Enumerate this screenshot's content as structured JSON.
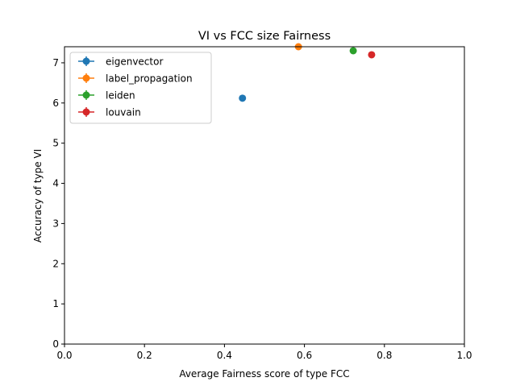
{
  "chart_data": {
    "type": "scatter",
    "title": "VI vs FCC size Fairness",
    "xlabel": "Average Fairness score of type FCC",
    "ylabel": "Accuracy of type VI",
    "xlim": [
      0,
      1
    ],
    "ylim": [
      0,
      7.4
    ],
    "xticks": [
      0.0,
      0.2,
      0.4,
      0.6,
      0.8,
      1.0
    ],
    "xtick_labels": [
      "0.0",
      "0.2",
      "0.4",
      "0.6",
      "0.8",
      "1.0"
    ],
    "yticks": [
      0,
      1,
      2,
      3,
      4,
      5,
      6,
      7
    ],
    "ytick_labels": [
      "0",
      "1",
      "2",
      "3",
      "4",
      "5",
      "6",
      "7"
    ],
    "grid": false,
    "legend_position": "top-left",
    "series": [
      {
        "name": "eigenvector",
        "color": "#1f77b4",
        "x": [
          0.445
        ],
        "y": [
          6.12
        ]
      },
      {
        "name": "label_propagation",
        "color": "#ff7f0e",
        "x": [
          0.585
        ],
        "y": [
          7.4
        ]
      },
      {
        "name": "leiden",
        "color": "#2ca02c",
        "x": [
          0.722
        ],
        "y": [
          7.3
        ]
      },
      {
        "name": "louvain",
        "color": "#d62728",
        "x": [
          0.768
        ],
        "y": [
          7.2
        ]
      }
    ]
  }
}
